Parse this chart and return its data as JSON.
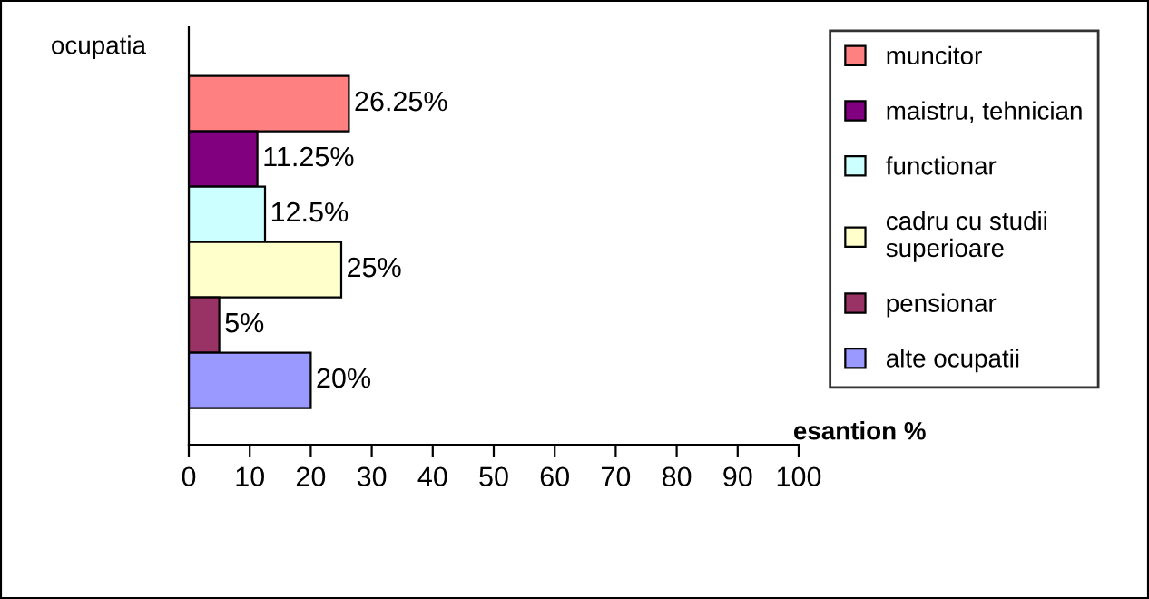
{
  "chart_data": {
    "type": "bar",
    "orientation": "horizontal",
    "ylabel": "ocupatia",
    "xlabel": "esantion %",
    "categories": [
      null
    ],
    "series": [
      {
        "name": "muncitor",
        "color": "#ff8080",
        "values": [
          26.25
        ],
        "value_labels": [
          "26.25%"
        ]
      },
      {
        "name": "maistru, tehnician",
        "color": "#800080",
        "values": [
          11.25
        ],
        "value_labels": [
          "11.25%"
        ]
      },
      {
        "name": "functionar",
        "color": "#ccffff",
        "values": [
          12.5
        ],
        "value_labels": [
          "12.5%"
        ]
      },
      {
        "name": "cadru cu studii superioare",
        "color": "#ffffcc",
        "values": [
          25
        ],
        "value_labels": [
          "25%"
        ]
      },
      {
        "name": "pensionar",
        "color": "#993366",
        "values": [
          5
        ],
        "value_labels": [
          "5%"
        ]
      },
      {
        "name": "alte ocupatii",
        "color": "#9999ff",
        "values": [
          20
        ],
        "value_labels": [
          "20%"
        ]
      }
    ],
    "xlim": [
      0,
      100
    ],
    "xticks": [
      0,
      10,
      20,
      30,
      40,
      50,
      60,
      70,
      80,
      90,
      100
    ],
    "grid": false,
    "legend": "right"
  }
}
